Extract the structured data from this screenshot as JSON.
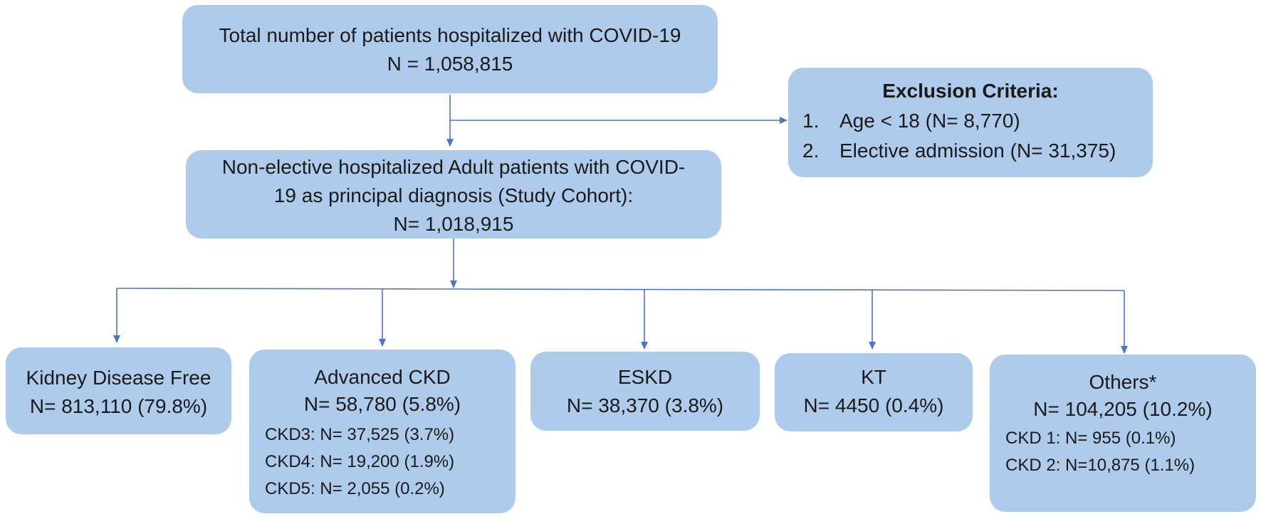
{
  "top_box": {
    "line1": "Total number of patients hospitalized with COVID-19",
    "line2": "N = 1,058,815"
  },
  "exclusion_box": {
    "title": "Exclusion Criteria:",
    "items": [
      {
        "num": "1.",
        "text": "Age < 18 (N= 8,770)"
      },
      {
        "num": "2.",
        "text": "Elective admission (N= 31,375)"
      }
    ]
  },
  "cohort_box": {
    "line1": "Non-elective hospitalized Adult patients with COVID-",
    "line2": "19 as principal diagnosis (Study Cohort):",
    "line3": "N= 1,018,915"
  },
  "groups": [
    {
      "title": "Kidney Disease Free",
      "count": "N= 813,110 (79.8%)",
      "details": []
    },
    {
      "title": "Advanced CKD",
      "count": "N= 58,780 (5.8%)",
      "details": [
        "CKD3: N= 37,525 (3.7%)",
        "CKD4: N= 19,200 (1.9%)",
        "CKD5: N= 2,055 (0.2%)"
      ]
    },
    {
      "title": "ESKD",
      "count": "N= 38,370 (3.8%)",
      "details": []
    },
    {
      "title": "KT",
      "count": "N= 4450 (0.4%)",
      "details": []
    },
    {
      "title": "Others*",
      "count": "N= 104,205 (10.2%)",
      "details": [
        "CKD 1: N= 955 (0.1%)",
        "CKD 2: N=10,875 (1.1%)"
      ]
    }
  ],
  "colors": {
    "box_fill": "#aecbeb",
    "connector": "#4a78c2"
  }
}
